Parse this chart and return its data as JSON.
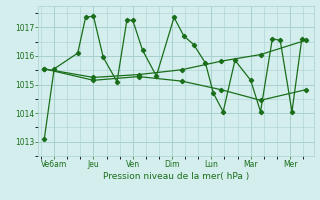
{
  "background_color": "#d4eeee",
  "grid_color": "#aad0d0",
  "line_color": "#1a6e1a",
  "marker_color": "#1a6e1a",
  "xlabel": "Pression niveau de la mer( hPa )",
  "ylim": [
    1012.5,
    1017.75
  ],
  "yticks": [
    1013,
    1014,
    1015,
    1016,
    1017
  ],
  "xtick_labels": [
    "Ve6am",
    "Jeu",
    "Ven",
    "Dim",
    "Lun",
    "Mar",
    "Mer"
  ],
  "xtick_positions": [
    1,
    3,
    5,
    7,
    9,
    11,
    13
  ],
  "xlim": [
    0.2,
    14.2
  ],
  "series1_x": [
    0.5,
    1.0,
    2.2,
    2.6,
    3.0,
    3.5,
    4.2,
    4.7,
    5.0,
    5.5,
    6.2,
    7.1,
    7.6,
    8.1,
    8.7,
    9.1,
    9.6,
    10.2,
    11.0,
    11.5,
    12.1,
    12.5,
    13.1,
    13.6
  ],
  "series1_y": [
    1013.1,
    1015.55,
    1016.1,
    1017.35,
    1017.4,
    1015.95,
    1015.1,
    1017.25,
    1017.25,
    1016.2,
    1015.3,
    1017.35,
    1016.7,
    1016.4,
    1015.75,
    1014.7,
    1014.05,
    1015.85,
    1015.15,
    1014.05,
    1016.6,
    1016.55,
    1014.05,
    1016.6
  ],
  "series2_x": [
    0.5,
    3.0,
    5.3,
    7.5,
    9.5,
    11.5,
    13.8
  ],
  "series2_y": [
    1015.55,
    1015.25,
    1015.35,
    1015.52,
    1015.82,
    1016.05,
    1016.55
  ],
  "series3_x": [
    0.5,
    3.0,
    5.3,
    7.5,
    9.5,
    11.5,
    13.8
  ],
  "series3_y": [
    1015.55,
    1015.15,
    1015.28,
    1015.12,
    1014.82,
    1014.45,
    1014.82
  ]
}
